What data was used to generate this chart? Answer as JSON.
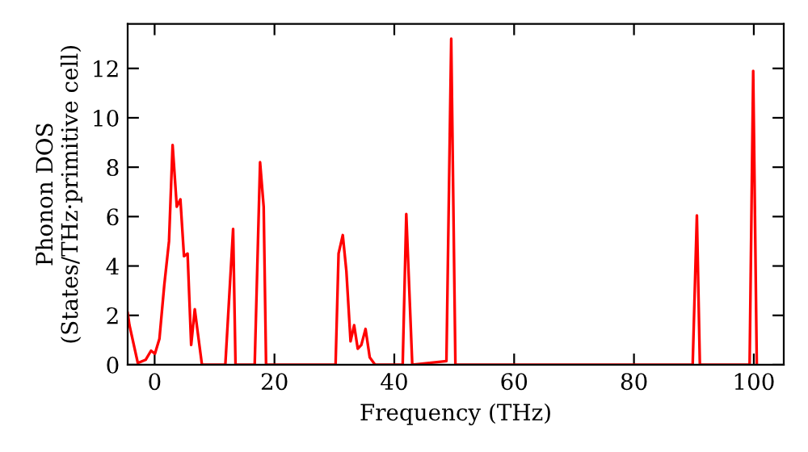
{
  "chart_data": {
    "type": "line",
    "xlabel": "Frequency (THz)",
    "ylabel": "Phonon DOS\n(States/THz·primitive cell)",
    "x": [
      -4.5,
      -4.2,
      -2.8,
      -1.5,
      -0.6,
      0.05,
      0.8,
      1.6,
      2.4,
      3.0,
      3.7,
      4.3,
      4.9,
      5.5,
      6.1,
      6.7,
      7.2,
      7.9,
      11.8,
      13.1,
      13.5,
      16.7,
      17.6,
      18.2,
      18.6,
      30.2,
      30.7,
      31.4,
      32.0,
      32.7,
      33.3,
      33.9,
      34.5,
      35.2,
      35.9,
      36.8,
      41.4,
      42.0,
      43.0,
      48.7,
      49.5,
      50.2,
      89.8,
      90.5,
      91.0,
      99.3,
      99.9,
      100.5
    ],
    "series": [
      {
        "color": "#ff0000",
        "values": [
          2.1,
          1.6,
          0.07,
          0.2,
          0.57,
          0.45,
          1.05,
          3.2,
          5.0,
          8.9,
          6.4,
          6.7,
          4.4,
          4.5,
          0.8,
          2.25,
          1.3,
          0,
          0,
          5.5,
          0,
          0,
          8.2,
          6.4,
          0,
          0,
          4.5,
          5.25,
          3.8,
          0.95,
          1.6,
          0.65,
          0.8,
          1.45,
          0.3,
          0,
          0,
          6.1,
          0,
          0.15,
          13.2,
          0,
          0,
          6.05,
          0,
          0,
          11.9,
          0
        ]
      }
    ],
    "xlim": [
      -4.5,
      105
    ],
    "ylim": [
      0,
      13.8
    ],
    "xticks": [
      0,
      20,
      40,
      60,
      80,
      100
    ],
    "yticks": [
      0,
      2,
      4,
      6,
      8,
      10,
      12
    ],
    "grid": false,
    "legend": false,
    "marker": "none",
    "line_style": "solid"
  }
}
